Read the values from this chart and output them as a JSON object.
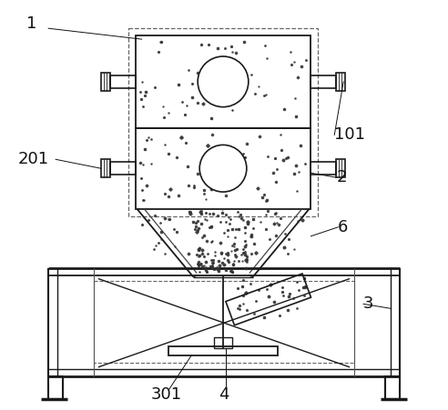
{
  "bg_color": "#ffffff",
  "line_color": "#1a1a1a",
  "dashed_color": "#666666",
  "particle_color": "#333333",
  "label_fontsize": 13,
  "ann_lw": 0.7,
  "lw": 1.2
}
